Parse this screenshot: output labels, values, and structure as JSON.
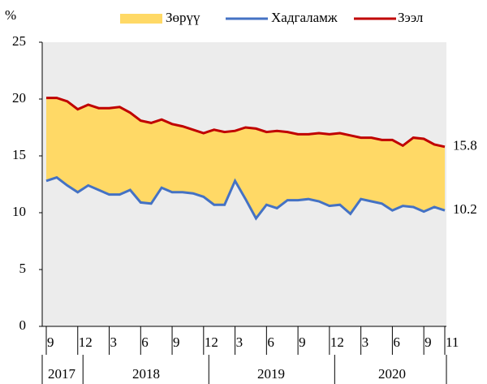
{
  "chart_data": {
    "type": "line",
    "y_label": "%",
    "categories": [
      "9",
      null,
      null,
      "12",
      null,
      null,
      "3",
      null,
      null,
      "6",
      null,
      null,
      "9",
      null,
      null,
      "12",
      null,
      null,
      "3",
      null,
      null,
      "6",
      null,
      null,
      "9",
      null,
      null,
      "12",
      null,
      null,
      "3",
      null,
      null,
      "6",
      null,
      null,
      "9",
      null,
      "11"
    ],
    "years": [
      "2017",
      "2018",
      "2019",
      "2020"
    ],
    "area": {
      "name": "Зөрүү",
      "color": "#ffd966"
    },
    "series": [
      {
        "name": "Зээл",
        "color": "#c00000",
        "values": [
          20.1,
          20.1,
          19.8,
          19.1,
          19.5,
          19.2,
          19.2,
          19.3,
          18.8,
          18.1,
          17.9,
          18.2,
          17.8,
          17.6,
          17.3,
          17.0,
          17.3,
          17.1,
          17.2,
          17.5,
          17.4,
          17.1,
          17.2,
          17.1,
          16.9,
          16.9,
          17.0,
          16.9,
          17.0,
          16.8,
          16.6,
          16.6,
          16.4,
          16.4,
          15.9,
          16.6,
          16.5,
          16.0,
          15.8
        ]
      },
      {
        "name": "Хадгаламж",
        "color": "#4472c4",
        "values": [
          12.8,
          13.1,
          12.4,
          11.8,
          12.4,
          12.0,
          11.6,
          11.6,
          12.0,
          10.9,
          10.8,
          12.2,
          11.8,
          11.8,
          11.7,
          11.4,
          10.7,
          10.7,
          12.8,
          11.2,
          9.5,
          10.7,
          10.4,
          11.1,
          11.1,
          11.2,
          11.0,
          10.6,
          10.7,
          9.9,
          11.2,
          11.0,
          10.8,
          10.2,
          10.6,
          10.5,
          10.1,
          10.5,
          10.2
        ]
      }
    ],
    "ylim": [
      0,
      25
    ],
    "yticks": [
      0,
      5,
      10,
      15,
      20,
      25
    ],
    "grid": false
  }
}
